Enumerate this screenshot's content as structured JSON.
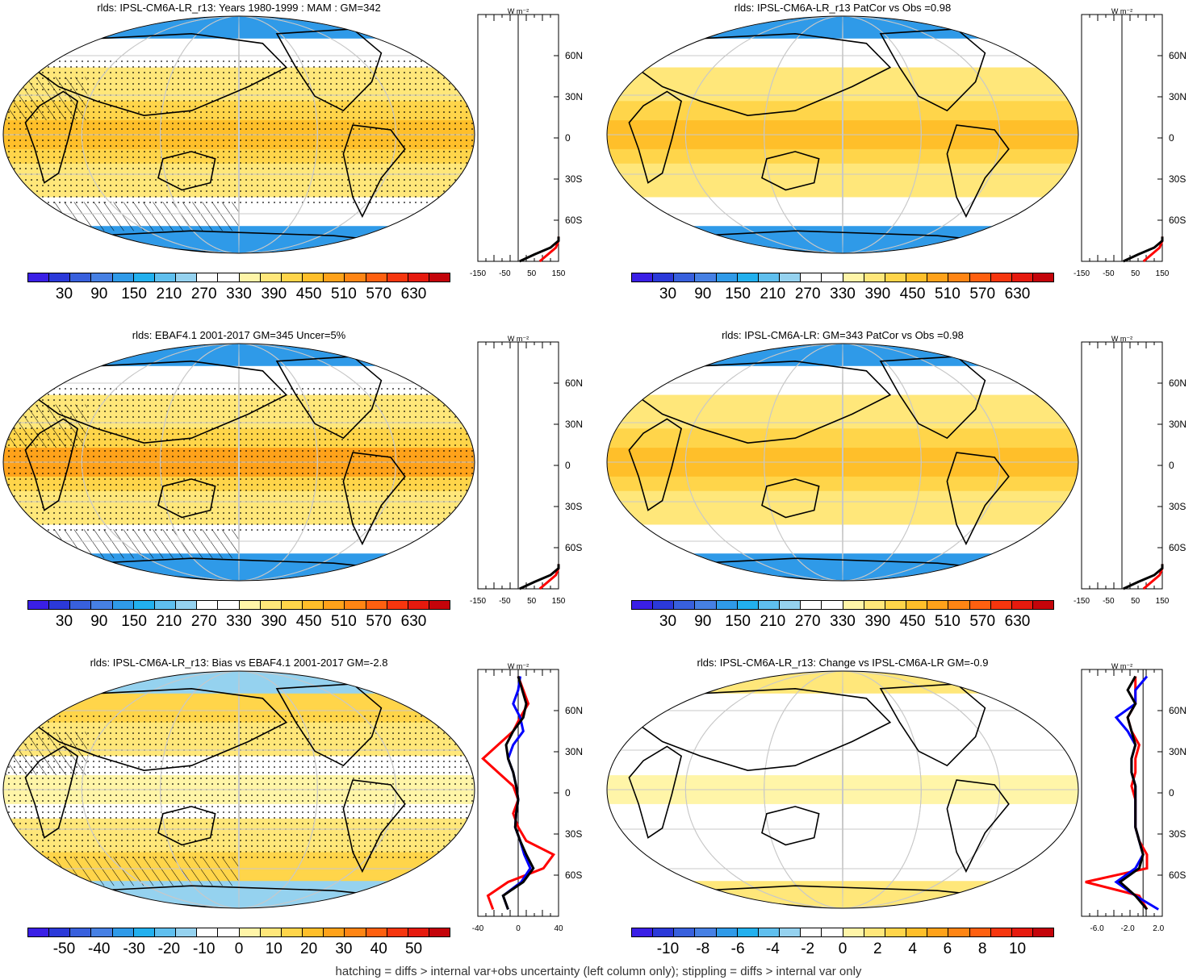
{
  "palettes": {
    "abs": [
      "#3a1fe6",
      "#2b39d9",
      "#3860dd",
      "#4680e4",
      "#2f9ae8",
      "#22b0ee",
      "#5fbfee",
      "#95d2ef",
      "#ffffff",
      "#ffffff",
      "#fff5a8",
      "#ffe77a",
      "#ffd54a",
      "#ffbf2a",
      "#ffa21a",
      "#ff8514",
      "#ff6010",
      "#f6360e",
      "#e61a0e",
      "#c4040a"
    ],
    "bias": [
      "#3a1fe6",
      "#2b39d9",
      "#3860dd",
      "#4680e4",
      "#2f9ae8",
      "#22b0ee",
      "#5fbfee",
      "#95d2ef",
      "#ffffff",
      "#ffffff",
      "#fff5a8",
      "#ffe77a",
      "#ffd54a",
      "#ffbf2a",
      "#ffa21a",
      "#ff8514",
      "#ff6010",
      "#f6360e",
      "#e61a0e",
      "#c4040a"
    ]
  },
  "colors": {
    "land_outline": "#000000",
    "graticule": "#c8c8c8",
    "model": "#000000",
    "obs": "#ff0000",
    "alt": "#0000ff"
  },
  "caption": "hatching = diffs > internal var+obs uncertainty (left column only); stippling = diffs > internal var only",
  "chart_data": [
    {
      "type": "heatmap",
      "title": "rlds: IPSL-CM6A-LR_r13: Years 1980-1999 : MAM : GM=342",
      "colorbar_ticks": [
        "30",
        "90",
        "150",
        "210",
        "270",
        "330",
        "390",
        "450",
        "510",
        "570",
        "630"
      ],
      "colorbar_range": [
        0,
        660
      ],
      "field_values": {
        "tropics": 420,
        "subtropics": 380,
        "midlat": 300,
        "polar": 150
      },
      "hatching": true,
      "stippling": true,
      "profile": {
        "xlabel": "W m⁻²",
        "x_ticks": [
          "-150",
          "-50",
          "50",
          "150"
        ],
        "xlim": [
          -150,
          150
        ],
        "y_ticks": [
          "60N",
          "30N",
          "0",
          "30S",
          "60S"
        ],
        "lat": [
          -90,
          -85,
          -80,
          -75,
          -72
        ],
        "model": [
          5,
          60,
          120,
          150,
          150
        ],
        "obs": [
          80,
          110,
          140,
          150,
          150
        ]
      }
    },
    {
      "type": "heatmap",
      "title": "rlds: IPSL-CM6A-LR_r13 PatCor vs Obs =0.98",
      "colorbar_ticks": [
        "30",
        "90",
        "150",
        "210",
        "270",
        "330",
        "390",
        "450",
        "510",
        "570",
        "630"
      ],
      "colorbar_range": [
        0,
        660
      ],
      "field_values": {
        "tropics": 420,
        "subtropics": 380,
        "midlat": 310,
        "polar": 160
      },
      "hatching": false,
      "stippling": false,
      "profile": {
        "xlabel": "W m⁻²",
        "x_ticks": [
          "-150",
          "-50",
          "50",
          "150"
        ],
        "xlim": [
          -150,
          150
        ],
        "y_ticks": [
          "60N",
          "30N",
          "0",
          "30S",
          "60S"
        ],
        "lat": [
          -90,
          -85,
          -80,
          -75,
          -72
        ],
        "model": [
          5,
          60,
          120,
          150,
          150
        ],
        "obs": [
          80,
          110,
          140,
          150,
          150
        ]
      }
    },
    {
      "type": "heatmap",
      "title": "rlds: EBAF4.1 2001-2017 GM=345 Uncer=5%",
      "colorbar_ticks": [
        "30",
        "90",
        "150",
        "210",
        "270",
        "330",
        "390",
        "450",
        "510",
        "570",
        "630"
      ],
      "colorbar_range": [
        0,
        660
      ],
      "field_values": {
        "tropics": 425,
        "subtropics": 385,
        "midlat": 300,
        "polar": 150
      },
      "hatching": true,
      "stippling": true,
      "profile": {
        "xlabel": "W m⁻²",
        "x_ticks": [
          "-150",
          "-50",
          "50",
          "150"
        ],
        "xlim": [
          -150,
          150
        ],
        "y_ticks": [
          "60N",
          "30N",
          "0",
          "30S",
          "60S"
        ],
        "lat": [
          -90,
          -85,
          -80,
          -75,
          -72
        ],
        "model": [
          5,
          60,
          120,
          150,
          150
        ],
        "obs": [
          80,
          110,
          140,
          150,
          150
        ]
      }
    },
    {
      "type": "heatmap",
      "title": "rlds: IPSL-CM6A-LR: GM=343 PatCor vs Obs =0.98",
      "colorbar_ticks": [
        "30",
        "90",
        "150",
        "210",
        "270",
        "330",
        "390",
        "450",
        "510",
        "570",
        "630"
      ],
      "colorbar_range": [
        0,
        660
      ],
      "field_values": {
        "tropics": 420,
        "subtropics": 380,
        "midlat": 310,
        "polar": 160
      },
      "hatching": false,
      "stippling": false,
      "profile": {
        "xlabel": "W m⁻²",
        "x_ticks": [
          "-150",
          "-50",
          "50",
          "150"
        ],
        "xlim": [
          -150,
          150
        ],
        "y_ticks": [
          "60N",
          "30N",
          "0",
          "30S",
          "60S"
        ],
        "lat": [
          -90,
          -85,
          -80,
          -75,
          -72
        ],
        "model": [
          5,
          60,
          120,
          150,
          150
        ],
        "obs": [
          80,
          110,
          140,
          150,
          150
        ]
      }
    },
    {
      "type": "heatmap",
      "title": "rlds: IPSL-CM6A-LR_r13: Bias vs EBAF4.1 2001-2017 GM=-2.8",
      "colorbar_ticks": [
        "-50",
        "-40",
        "-30",
        "-20",
        "-10",
        "0",
        "10",
        "20",
        "30",
        "40",
        "50"
      ],
      "colorbar_range": [
        -55,
        55
      ],
      "field_values": {
        "tropics": -5,
        "subtropics": 8,
        "midlat": 12,
        "polar": -15
      },
      "hatching": true,
      "stippling": true,
      "profile": {
        "xlabel": "W m⁻²",
        "x_ticks": [
          "-40",
          "0",
          "40"
        ],
        "xlim": [
          -40,
          40
        ],
        "y_ticks": [
          "60N",
          "30N",
          "0",
          "30S",
          "60S"
        ],
        "lat": [
          -85,
          -75,
          -65,
          -55,
          -45,
          -35,
          -25,
          -15,
          -5,
          5,
          15,
          25,
          35,
          45,
          55,
          65,
          75,
          85
        ],
        "model": [
          -10,
          -15,
          5,
          15,
          8,
          2,
          -3,
          -2,
          0,
          -2,
          -5,
          -10,
          -12,
          -5,
          5,
          8,
          4,
          0
        ],
        "obs": [
          -25,
          -30,
          -10,
          25,
          35,
          8,
          0,
          -5,
          0,
          -5,
          -20,
          -35,
          -20,
          -5,
          2,
          10,
          5,
          0
        ],
        "alt": [
          -10,
          -15,
          3,
          12,
          6,
          2,
          -3,
          -2,
          0,
          -2,
          -5,
          -10,
          -5,
          5,
          2,
          -5,
          0,
          2
        ]
      }
    },
    {
      "type": "heatmap",
      "title": "rlds: IPSL-CM6A-LR_r13: Change vs IPSL-CM6A-LR GM=-0.9",
      "colorbar_ticks": [
        "-10",
        "-8",
        "-6",
        "-4",
        "-2",
        "0",
        "2",
        "4",
        "6",
        "8",
        "10"
      ],
      "colorbar_range": [
        -11,
        11
      ],
      "field_values": {
        "tropics": -1,
        "subtropics": -2,
        "midlat": -1,
        "polar": 2
      },
      "hatching": false,
      "stippling": false,
      "profile": {
        "xlabel": "W m⁻²",
        "x_ticks": [
          "-6.0",
          "-2.0",
          "2.0"
        ],
        "xlim": [
          -8,
          2.5
        ],
        "y_ticks": [
          "60N",
          "30N",
          "0",
          "30S",
          "60S"
        ],
        "lat": [
          -85,
          -75,
          -65,
          -55,
          -45,
          -35,
          -25,
          -15,
          -5,
          5,
          15,
          25,
          35,
          45,
          55,
          65,
          75,
          85
        ],
        "model": [
          0.5,
          -1.0,
          -3.0,
          -0.5,
          0.0,
          -0.5,
          -1.0,
          -1.0,
          -1.0,
          -1.0,
          -1.5,
          -1.5,
          -1.0,
          -1.5,
          -2.0,
          -1.0,
          -2.0,
          -1.0
        ],
        "obs": [
          0.5,
          -0.5,
          -7.5,
          0.5,
          0.5,
          -0.5,
          -1.0,
          -1.0,
          -1.0,
          -1.5,
          -1.0,
          -1.0,
          -0.5,
          -1.5,
          -2.0,
          -1.0,
          -1.0,
          -1.0
        ],
        "alt": [
          2.0,
          -1.0,
          -3.5,
          -1.0,
          0.0,
          -0.5,
          -1.0,
          -1.0,
          -1.0,
          -1.0,
          -1.5,
          -1.5,
          -1.0,
          -2.0,
          -3.5,
          -1.0,
          -1.0,
          0.5
        ]
      }
    }
  ]
}
